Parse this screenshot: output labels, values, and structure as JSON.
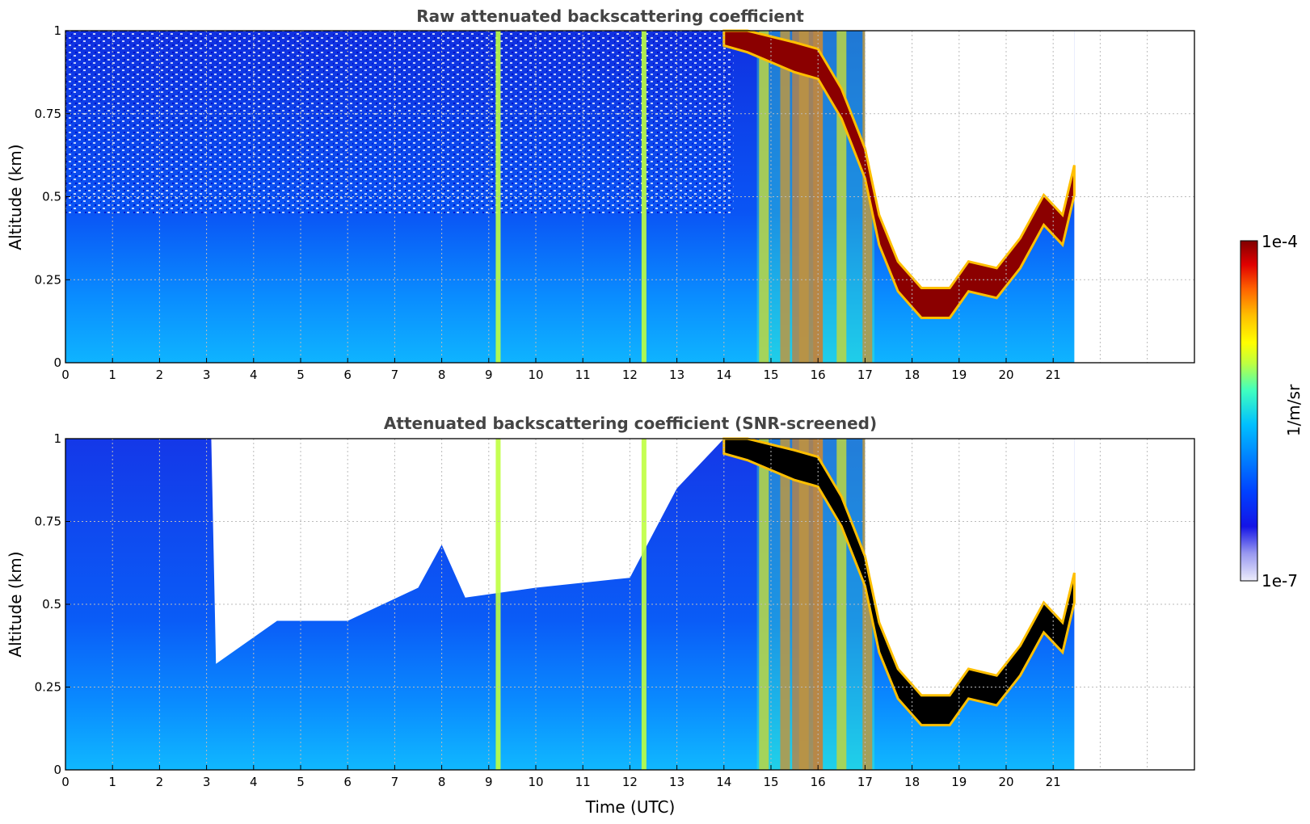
{
  "chart_data": [
    {
      "type": "heatmap",
      "title": "Raw attenuated backscattering coefficient",
      "xlabel": "",
      "ylabel": "Altitude (km)",
      "xlim": [
        0,
        24
      ],
      "ylim": [
        0,
        1
      ],
      "x_ticks": [
        "0",
        "1",
        "2",
        "3",
        "4",
        "5",
        "6",
        "7",
        "8",
        "9",
        "10",
        "11",
        "12",
        "13",
        "14",
        "15",
        "16",
        "17",
        "18",
        "19",
        "20",
        "21"
      ],
      "y_ticks": [
        "0",
        "0.25",
        "0.5",
        "0.75",
        "1"
      ],
      "grid": true,
      "data_end_hour": 21.45,
      "cloud_base_km": [
        {
          "time": 14.0,
          "altitude": 1.0
        },
        {
          "time": 14.5,
          "altitude": 0.98
        },
        {
          "time": 15.5,
          "altitude": 0.92
        },
        {
          "time": 16.0,
          "altitude": 0.9
        },
        {
          "time": 16.5,
          "altitude": 0.78
        },
        {
          "time": 17.0,
          "altitude": 0.6
        },
        {
          "time": 17.3,
          "altitude": 0.4
        },
        {
          "time": 17.7,
          "altitude": 0.26
        },
        {
          "time": 18.2,
          "altitude": 0.18
        },
        {
          "time": 18.8,
          "altitude": 0.18
        },
        {
          "time": 19.2,
          "altitude": 0.26
        },
        {
          "time": 19.8,
          "altitude": 0.24
        },
        {
          "time": 20.3,
          "altitude": 0.33
        },
        {
          "time": 20.8,
          "altitude": 0.46
        },
        {
          "time": 21.2,
          "altitude": 0.4
        },
        {
          "time": 21.45,
          "altitude": 0.55
        }
      ],
      "rain_bands_hour": [
        9.2,
        12.3,
        14.85,
        15.3,
        15.7,
        16.0,
        16.5,
        17.05
      ]
    },
    {
      "type": "heatmap",
      "title": "Attenuated backscattering coefficient (SNR-screened)",
      "xlabel": "Time (UTC)",
      "ylabel": "Altitude (km)",
      "xlim": [
        0,
        24
      ],
      "ylim": [
        0,
        1
      ],
      "x_ticks": [
        "0",
        "1",
        "2",
        "3",
        "4",
        "5",
        "6",
        "7",
        "8",
        "9",
        "10",
        "11",
        "12",
        "13",
        "14",
        "15",
        "16",
        "17",
        "18",
        "19",
        "20",
        "21"
      ],
      "y_ticks": [
        "0",
        "0.25",
        "0.5",
        "0.75",
        "1"
      ],
      "grid": true,
      "data_end_hour": 21.45,
      "screen_top_km": [
        {
          "time": 0.0,
          "altitude": 1.0
        },
        {
          "time": 3.1,
          "altitude": 1.0
        },
        {
          "time": 3.2,
          "altitude": 0.32
        },
        {
          "time": 4.5,
          "altitude": 0.45
        },
        {
          "time": 6.0,
          "altitude": 0.45
        },
        {
          "time": 7.5,
          "altitude": 0.55
        },
        {
          "time": 8.0,
          "altitude": 0.68
        },
        {
          "time": 8.5,
          "altitude": 0.52
        },
        {
          "time": 10.0,
          "altitude": 0.55
        },
        {
          "time": 12.0,
          "altitude": 0.58
        },
        {
          "time": 13.0,
          "altitude": 0.85
        },
        {
          "time": 14.0,
          "altitude": 1.0
        }
      ]
    }
  ],
  "colorbar": {
    "label": "1/m/sr",
    "max_label": "1e-4",
    "min_label": "1e-7",
    "colors": [
      "#ececfb",
      "#9999f0",
      "#1414e6",
      "#0040ff",
      "#0080ff",
      "#00c0ff",
      "#40ffbf",
      "#bfff40",
      "#ffff00",
      "#ffbf00",
      "#ff6000",
      "#e00000",
      "#800000"
    ]
  }
}
